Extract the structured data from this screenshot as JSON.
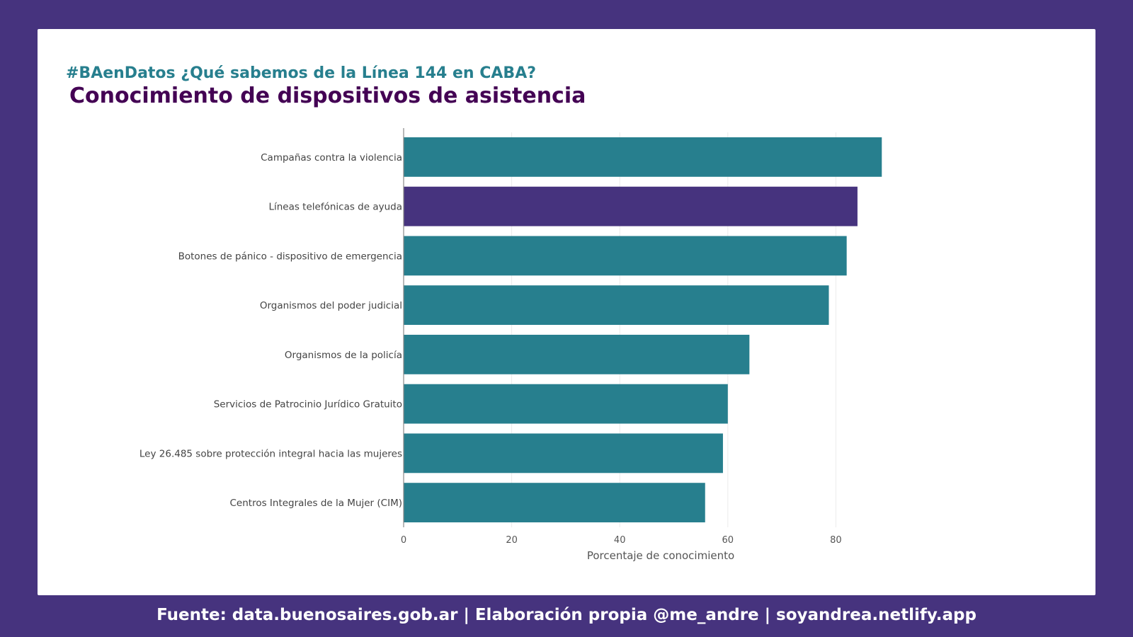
{
  "colors": {
    "background": "#46337e",
    "card": "#ffffff",
    "bar_default": "#277f8e",
    "bar_highlight": "#46337e",
    "subtitle": "#277f8e",
    "title": "#440154"
  },
  "header": {
    "hashtag_title": "#BAenDatos ¿Qué sabemos de la Línea 144 en CABA?",
    "main_title": "Conocimiento de dispositivos de asistencia"
  },
  "chart_data": {
    "type": "bar",
    "orientation": "horizontal",
    "categories": [
      "Campañas contra la violencia",
      "Líneas telefónicas de ayuda",
      "Botones de pánico - dispositivo de emergencia",
      "Organismos del poder judicial",
      "Organismos de la policía",
      "Servicios de Patrocinio Jurídico Gratuito",
      "Ley 26.485 sobre protección integral hacia las mujeres",
      "Centros Integrales de la Mujer (CIM)"
    ],
    "values": [
      88.5,
      84,
      82,
      78.7,
      64,
      60,
      59.1,
      55.8
    ],
    "highlight_index": 1,
    "xlabel": "Porcentaje de conocimiento",
    "ylabel": "",
    "xlim": [
      0,
      100
    ],
    "xticks": [
      0,
      20,
      40,
      60,
      80
    ],
    "grid": true
  },
  "footer": {
    "text": "Fuente: data.buenosaires.gob.ar  | Elaboración propia @me_andre | soyandrea.netlify.app"
  }
}
